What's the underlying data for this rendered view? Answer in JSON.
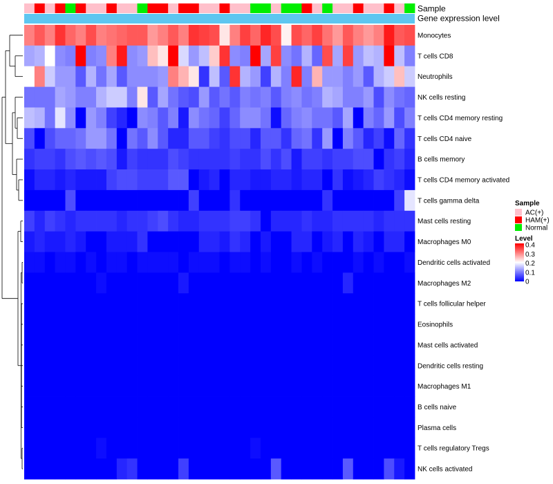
{
  "chart_data": {
    "type": "heatmap",
    "annotations": {
      "sample_label": "Sample",
      "gene_label": "Gene expression level",
      "sample_groups": [
        "AC(+)",
        "HAM(+)",
        "AC(+)",
        "HAM(+)",
        "Normal",
        "HAM(+)",
        "AC(+)",
        "AC(+)",
        "HAM(+)",
        "AC(+)",
        "AC(+)",
        "Normal",
        "HAM(+)",
        "HAM(+)",
        "AC(+)",
        "HAM(+)",
        "HAM(+)",
        "AC(+)",
        "AC(+)",
        "HAM(+)",
        "AC(+)",
        "AC(+)",
        "Normal",
        "Normal",
        "AC(+)",
        "Normal",
        "Normal",
        "HAM(+)",
        "AC(+)",
        "Normal",
        "AC(+)",
        "AC(+)",
        "HAM(+)",
        "AC(+)",
        "AC(+)",
        "HAM(+)",
        "AC(+)",
        "Normal"
      ]
    },
    "rows": [
      "Monocytes",
      "T cells CD8",
      "Neutrophils",
      "NK cells resting",
      "T cells CD4 memory resting",
      "T cells CD4 naive",
      "B cells memory",
      "T cells CD4 memory activated",
      "T cells gamma delta",
      "Mast cells resting",
      "Macrophages M0",
      "Dendritic cells activated",
      "Macrophages M2",
      "T cells follicular helper",
      "Eosinophils",
      "Mast cells activated",
      "Dendritic cells resting",
      "Macrophages M1",
      "B cells naive",
      "Plasma cells",
      "T cells regulatory  Tregs",
      "NK cells activated"
    ],
    "values": [
      [
        0.3,
        0.33,
        0.3,
        0.36,
        0.32,
        0.3,
        0.34,
        0.3,
        0.31,
        0.32,
        0.33,
        0.33,
        0.28,
        0.3,
        0.33,
        0.3,
        0.36,
        0.35,
        0.34,
        0.22,
        0.3,
        0.35,
        0.32,
        0.37,
        0.34,
        0.21,
        0.34,
        0.32,
        0.35,
        0.31,
        0.28,
        0.33,
        0.3,
        0.28,
        0.3,
        0.38,
        0.33,
        0.34
      ],
      [
        0.13,
        0.14,
        0.2,
        0.11,
        0.1,
        0.4,
        0.1,
        0.11,
        0.3,
        0.38,
        0.11,
        0.12,
        0.25,
        0.22,
        0.4,
        0.17,
        0.12,
        0.15,
        0.24,
        0.36,
        0.11,
        0.1,
        0.4,
        0.13,
        0.35,
        0.11,
        0.09,
        0.14,
        0.08,
        0.34,
        0.13,
        0.35,
        0.12,
        0.15,
        0.14,
        0.4,
        0.15,
        0.1
      ],
      [
        0.2,
        0.3,
        0.16,
        0.12,
        0.12,
        0.07,
        0.14,
        0.09,
        0.13,
        0.07,
        0.11,
        0.11,
        0.11,
        0.12,
        0.3,
        0.26,
        0.22,
        0.04,
        0.15,
        0.07,
        0.36,
        0.14,
        0.12,
        0.05,
        0.14,
        0.1,
        0.37,
        0.1,
        0.26,
        0.12,
        0.12,
        0.1,
        0.12,
        0.07,
        0.14,
        0.16,
        0.25,
        0.16
      ],
      [
        0.09,
        0.09,
        0.09,
        0.13,
        0.12,
        0.1,
        0.1,
        0.14,
        0.16,
        0.16,
        0.1,
        0.22,
        0.07,
        0.13,
        0.09,
        0.07,
        0.06,
        0.12,
        0.07,
        0.09,
        0.07,
        0.1,
        0.09,
        0.1,
        0.07,
        0.1,
        0.11,
        0.09,
        0.1,
        0.14,
        0.13,
        0.1,
        0.1,
        0.12,
        0.06,
        0.11,
        0.09,
        0.08
      ],
      [
        0.15,
        0.14,
        0.09,
        0.18,
        0.11,
        0.0,
        0.12,
        0.1,
        0.05,
        0.03,
        0.0,
        0.11,
        0.1,
        0.07,
        0.1,
        0.02,
        0.11,
        0.09,
        0.08,
        0.05,
        0.08,
        0.11,
        0.11,
        0.09,
        0.01,
        0.08,
        0.1,
        0.11,
        0.09,
        0.09,
        0.07,
        0.13,
        0.0,
        0.1,
        0.08,
        0.12,
        0.06,
        0.1
      ],
      [
        0.06,
        0.0,
        0.06,
        0.08,
        0.08,
        0.09,
        0.12,
        0.12,
        0.09,
        0.0,
        0.09,
        0.07,
        0.11,
        0.07,
        0.03,
        0.03,
        0.07,
        0.07,
        0.05,
        0.04,
        0.06,
        0.06,
        0.03,
        0.07,
        0.07,
        0.04,
        0.08,
        0.09,
        0.04,
        0.12,
        0.0,
        0.1,
        0.07,
        0.03,
        0.05,
        0.01,
        0.08,
        0.04
      ],
      [
        0.04,
        0.05,
        0.05,
        0.04,
        0.06,
        0.07,
        0.06,
        0.07,
        0.06,
        0.02,
        0.05,
        0.04,
        0.04,
        0.04,
        0.06,
        0.05,
        0.04,
        0.04,
        0.04,
        0.04,
        0.05,
        0.04,
        0.04,
        0.06,
        0.04,
        0.06,
        0.02,
        0.05,
        0.05,
        0.04,
        0.05,
        0.05,
        0.06,
        0.06,
        0.0,
        0.04,
        0.05,
        0.03
      ],
      [
        0.01,
        0.03,
        0.03,
        0.02,
        0.03,
        0.02,
        0.02,
        0.02,
        0.05,
        0.06,
        0.06,
        0.05,
        0.05,
        0.05,
        0.07,
        0.07,
        0.0,
        0.02,
        0.03,
        0.0,
        0.03,
        0.03,
        0.02,
        0.02,
        0.03,
        0.03,
        0.02,
        0.03,
        0.03,
        0.0,
        0.04,
        0.01,
        0.02,
        0.03,
        0.05,
        0.04,
        0.03,
        0.01
      ],
      [
        0.0,
        0.0,
        0.0,
        0.0,
        0.06,
        0.0,
        0.0,
        0.0,
        0.0,
        0.0,
        0.0,
        0.0,
        0.0,
        0.0,
        0.0,
        0.0,
        0.05,
        0.0,
        0.0,
        0.0,
        0.04,
        0.0,
        0.0,
        0.0,
        0.0,
        0.0,
        0.0,
        0.0,
        0.0,
        0.04,
        0.0,
        0.0,
        0.0,
        0.0,
        0.0,
        0.0,
        0.05,
        0.18
      ],
      [
        0.05,
        0.03,
        0.05,
        0.04,
        0.03,
        0.04,
        0.04,
        0.04,
        0.04,
        0.03,
        0.04,
        0.04,
        0.05,
        0.06,
        0.04,
        0.03,
        0.03,
        0.04,
        0.04,
        0.04,
        0.05,
        0.05,
        0.04,
        0.0,
        0.03,
        0.03,
        0.03,
        0.04,
        0.03,
        0.03,
        0.04,
        0.04,
        0.04,
        0.04,
        0.03,
        0.04,
        0.04,
        0.04
      ],
      [
        0.02,
        0.03,
        0.02,
        0.02,
        0.03,
        0.02,
        0.0,
        0.0,
        0.02,
        0.02,
        0.02,
        0.04,
        0.0,
        0.0,
        0.0,
        0.0,
        0.0,
        0.03,
        0.03,
        0.02,
        0.04,
        0.03,
        0.0,
        0.02,
        0.0,
        0.0,
        0.03,
        0.03,
        0.0,
        0.02,
        0.03,
        0.0,
        0.03,
        0.02,
        0.0,
        0.03,
        0.03,
        0.0
      ],
      [
        0.01,
        0.01,
        0.0,
        0.01,
        0.01,
        0.0,
        0.01,
        0.0,
        0.01,
        0.01,
        0.0,
        0.01,
        0.01,
        0.01,
        0.01,
        0.0,
        0.01,
        0.01,
        0.01,
        0.0,
        0.01,
        0.01,
        0.0,
        0.01,
        0.0,
        0.0,
        0.01,
        0.0,
        0.01,
        0.0,
        0.0,
        0.0,
        0.01,
        0.0,
        0.01,
        0.0,
        0.0,
        0.01
      ],
      [
        0.0,
        0.0,
        0.0,
        0.0,
        0.0,
        0.0,
        0.0,
        0.01,
        0.0,
        0.0,
        0.0,
        0.0,
        0.0,
        0.0,
        0.0,
        0.02,
        0.0,
        0.0,
        0.0,
        0.0,
        0.0,
        0.0,
        0.0,
        0.0,
        0.0,
        0.0,
        0.0,
        0.0,
        0.0,
        0.0,
        0.0,
        0.03,
        0.0,
        0.0,
        0.0,
        0.0,
        0.0,
        0.0
      ],
      [
        0.0,
        0.0,
        0.0,
        0.0,
        0.0,
        0.0,
        0.0,
        0.0,
        0.0,
        0.0,
        0.0,
        0.0,
        0.0,
        0.0,
        0.0,
        0.0,
        0.0,
        0.0,
        0.0,
        0.0,
        0.0,
        0.0,
        0.0,
        0.0,
        0.0,
        0.0,
        0.0,
        0.0,
        0.0,
        0.0,
        0.0,
        0.0,
        0.0,
        0.0,
        0.0,
        0.0,
        0.0,
        0.0
      ],
      [
        0.0,
        0.0,
        0.0,
        0.0,
        0.0,
        0.0,
        0.0,
        0.0,
        0.0,
        0.0,
        0.0,
        0.0,
        0.0,
        0.0,
        0.0,
        0.0,
        0.0,
        0.0,
        0.0,
        0.0,
        0.0,
        0.0,
        0.0,
        0.0,
        0.0,
        0.0,
        0.0,
        0.0,
        0.0,
        0.0,
        0.0,
        0.0,
        0.0,
        0.0,
        0.0,
        0.0,
        0.0,
        0.0
      ],
      [
        0.0,
        0.0,
        0.0,
        0.0,
        0.0,
        0.0,
        0.0,
        0.0,
        0.0,
        0.0,
        0.0,
        0.0,
        0.0,
        0.0,
        0.0,
        0.0,
        0.0,
        0.0,
        0.0,
        0.0,
        0.0,
        0.0,
        0.0,
        0.0,
        0.0,
        0.0,
        0.0,
        0.0,
        0.0,
        0.0,
        0.0,
        0.0,
        0.0,
        0.0,
        0.0,
        0.0,
        0.0,
        0.0
      ],
      [
        0.0,
        0.0,
        0.0,
        0.0,
        0.0,
        0.0,
        0.0,
        0.0,
        0.0,
        0.0,
        0.0,
        0.0,
        0.0,
        0.0,
        0.0,
        0.0,
        0.0,
        0.0,
        0.0,
        0.0,
        0.0,
        0.0,
        0.0,
        0.0,
        0.0,
        0.0,
        0.0,
        0.0,
        0.0,
        0.0,
        0.0,
        0.0,
        0.0,
        0.0,
        0.0,
        0.0,
        0.0,
        0.0
      ],
      [
        0.0,
        0.0,
        0.0,
        0.0,
        0.0,
        0.0,
        0.0,
        0.0,
        0.0,
        0.0,
        0.0,
        0.0,
        0.0,
        0.0,
        0.0,
        0.0,
        0.0,
        0.0,
        0.0,
        0.0,
        0.0,
        0.0,
        0.0,
        0.0,
        0.0,
        0.0,
        0.0,
        0.0,
        0.0,
        0.0,
        0.0,
        0.0,
        0.0,
        0.0,
        0.0,
        0.0,
        0.0,
        0.0
      ],
      [
        0.0,
        0.0,
        0.0,
        0.0,
        0.0,
        0.0,
        0.0,
        0.0,
        0.0,
        0.0,
        0.0,
        0.0,
        0.0,
        0.0,
        0.0,
        0.0,
        0.0,
        0.0,
        0.0,
        0.0,
        0.0,
        0.0,
        0.0,
        0.0,
        0.0,
        0.0,
        0.0,
        0.0,
        0.0,
        0.0,
        0.0,
        0.0,
        0.0,
        0.0,
        0.0,
        0.0,
        0.0,
        0.0
      ],
      [
        0.0,
        0.0,
        0.0,
        0.0,
        0.0,
        0.0,
        0.0,
        0.0,
        0.0,
        0.0,
        0.0,
        0.0,
        0.0,
        0.0,
        0.0,
        0.0,
        0.0,
        0.0,
        0.0,
        0.0,
        0.0,
        0.0,
        0.0,
        0.0,
        0.0,
        0.0,
        0.0,
        0.0,
        0.0,
        0.0,
        0.0,
        0.0,
        0.0,
        0.0,
        0.0,
        0.0,
        0.0,
        0.0
      ],
      [
        0.0,
        0.0,
        0.0,
        0.0,
        0.0,
        0.0,
        0.0,
        0.01,
        0.0,
        0.0,
        0.0,
        0.0,
        0.0,
        0.0,
        0.0,
        0.0,
        0.0,
        0.0,
        0.0,
        0.0,
        0.0,
        0.0,
        0.01,
        0.0,
        0.0,
        0.0,
        0.0,
        0.0,
        0.0,
        0.0,
        0.0,
        0.0,
        0.0,
        0.0,
        0.0,
        0.0,
        0.0,
        0.0
      ],
      [
        0.0,
        0.0,
        0.0,
        0.0,
        0.0,
        0.0,
        0.0,
        0.0,
        0.0,
        0.03,
        0.04,
        0.0,
        0.0,
        0.0,
        0.0,
        0.05,
        0.0,
        0.0,
        0.0,
        0.0,
        0.0,
        0.0,
        0.0,
        0.0,
        0.07,
        0.0,
        0.0,
        0.0,
        0.0,
        0.0,
        0.0,
        0.07,
        0.0,
        0.0,
        0.0,
        0.06,
        0.02,
        0.0
      ]
    ],
    "legend": {
      "sample_title": "Sample",
      "sample_entries": [
        {
          "label": "AC(+)",
          "color": "#ffc0cb"
        },
        {
          "label": "HAM(+)",
          "color": "#ff0000"
        },
        {
          "label": "Normal",
          "color": "#00ee00"
        }
      ],
      "level_title": "Level",
      "level_ticks": [
        "0.4",
        "0.3",
        "0.2",
        "0.1",
        "0"
      ],
      "level_range": [
        0,
        0.4
      ]
    },
    "colors": {
      "low": "#0000ff",
      "mid": "#ffffff",
      "high": "#ff0000",
      "gene_bar": "#5ec6f0"
    }
  }
}
